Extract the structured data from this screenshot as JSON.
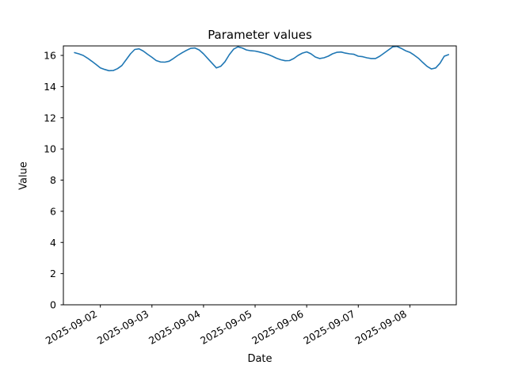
{
  "figure": {
    "background": "#ffffff",
    "text_color": "#000000"
  },
  "chart_data": {
    "type": "line",
    "title": "Parameter values",
    "xlabel": "Date",
    "ylabel": "Value",
    "grid": false,
    "legend": null,
    "line_color": "#1f77b4",
    "spine_color": "#000000",
    "y_ticks": [
      0,
      2,
      4,
      6,
      8,
      10,
      12,
      14,
      16
    ],
    "ylim": [
      0,
      16.61
    ],
    "xlim": [
      "2025-09-01 06:48",
      "2025-09-08 21:36"
    ],
    "x_tick_labels": [
      "2025-09-02",
      "2025-09-03",
      "2025-09-04",
      "2025-09-05",
      "2025-09-06",
      "2025-09-07",
      "2025-09-08"
    ],
    "x_tick_rotation_deg": 30,
    "series": [
      {
        "name": "parameter-values",
        "color": "#1f77b4",
        "points": [
          [
            "2025-09-01 12:00",
            16.18
          ],
          [
            "2025-09-01 14:00",
            16.1
          ],
          [
            "2025-09-01 16:00",
            16.0
          ],
          [
            "2025-09-01 18:00",
            15.83
          ],
          [
            "2025-09-01 20:00",
            15.63
          ],
          [
            "2025-09-01 22:00",
            15.42
          ],
          [
            "2025-09-02 00:00",
            15.2
          ],
          [
            "2025-09-02 02:00",
            15.1
          ],
          [
            "2025-09-02 04:00",
            15.02
          ],
          [
            "2025-09-02 06:00",
            15.03
          ],
          [
            "2025-09-02 08:00",
            15.15
          ],
          [
            "2025-09-02 10:00",
            15.35
          ],
          [
            "2025-09-02 12:00",
            15.72
          ],
          [
            "2025-09-02 14:00",
            16.1
          ],
          [
            "2025-09-02 16:00",
            16.38
          ],
          [
            "2025-09-02 18:00",
            16.42
          ],
          [
            "2025-09-02 20:00",
            16.28
          ],
          [
            "2025-09-02 22:00",
            16.07
          ],
          [
            "2025-09-03 00:00",
            15.88
          ],
          [
            "2025-09-03 02:00",
            15.67
          ],
          [
            "2025-09-03 04:00",
            15.58
          ],
          [
            "2025-09-03 06:00",
            15.57
          ],
          [
            "2025-09-03 08:00",
            15.63
          ],
          [
            "2025-09-03 10:00",
            15.8
          ],
          [
            "2025-09-03 12:00",
            16.0
          ],
          [
            "2025-09-03 14:00",
            16.17
          ],
          [
            "2025-09-03 16:00",
            16.32
          ],
          [
            "2025-09-03 18:00",
            16.45
          ],
          [
            "2025-09-03 20:00",
            16.48
          ],
          [
            "2025-09-03 22:00",
            16.35
          ],
          [
            "2025-09-04 00:00",
            16.1
          ],
          [
            "2025-09-04 02:00",
            15.8
          ],
          [
            "2025-09-04 04:00",
            15.5
          ],
          [
            "2025-09-04 06:00",
            15.2
          ],
          [
            "2025-09-04 08:00",
            15.3
          ],
          [
            "2025-09-04 10:00",
            15.6
          ],
          [
            "2025-09-04 12:00",
            16.05
          ],
          [
            "2025-09-04 14:00",
            16.4
          ],
          [
            "2025-09-04 16:00",
            16.55
          ],
          [
            "2025-09-04 18:00",
            16.48
          ],
          [
            "2025-09-04 20:00",
            16.35
          ],
          [
            "2025-09-04 22:00",
            16.3
          ],
          [
            "2025-09-05 00:00",
            16.28
          ],
          [
            "2025-09-05 02:00",
            16.22
          ],
          [
            "2025-09-05 04:00",
            16.15
          ],
          [
            "2025-09-05 06:00",
            16.06
          ],
          [
            "2025-09-05 08:00",
            15.95
          ],
          [
            "2025-09-05 10:00",
            15.82
          ],
          [
            "2025-09-05 12:00",
            15.72
          ],
          [
            "2025-09-05 14:00",
            15.66
          ],
          [
            "2025-09-05 16:00",
            15.67
          ],
          [
            "2025-09-05 18:00",
            15.8
          ],
          [
            "2025-09-05 20:00",
            16.0
          ],
          [
            "2025-09-05 22:00",
            16.15
          ],
          [
            "2025-09-06 00:00",
            16.23
          ],
          [
            "2025-09-06 02:00",
            16.1
          ],
          [
            "2025-09-06 04:00",
            15.9
          ],
          [
            "2025-09-06 06:00",
            15.8
          ],
          [
            "2025-09-06 08:00",
            15.85
          ],
          [
            "2025-09-06 10:00",
            15.95
          ],
          [
            "2025-09-06 12:00",
            16.1
          ],
          [
            "2025-09-06 14:00",
            16.2
          ],
          [
            "2025-09-06 16:00",
            16.22
          ],
          [
            "2025-09-06 18:00",
            16.15
          ],
          [
            "2025-09-06 20:00",
            16.1
          ],
          [
            "2025-09-06 22:00",
            16.07
          ],
          [
            "2025-09-07 00:00",
            15.95
          ],
          [
            "2025-09-07 02:00",
            15.92
          ],
          [
            "2025-09-07 04:00",
            15.85
          ],
          [
            "2025-09-07 06:00",
            15.8
          ],
          [
            "2025-09-07 08:00",
            15.8
          ],
          [
            "2025-09-07 10:00",
            15.95
          ],
          [
            "2025-09-07 12:00",
            16.15
          ],
          [
            "2025-09-07 14:00",
            16.35
          ],
          [
            "2025-09-07 16:00",
            16.55
          ],
          [
            "2025-09-07 18:00",
            16.58
          ],
          [
            "2025-09-07 20:00",
            16.45
          ],
          [
            "2025-09-07 22:00",
            16.3
          ],
          [
            "2025-09-08 00:00",
            16.2
          ],
          [
            "2025-09-08 02:00",
            16.02
          ],
          [
            "2025-09-08 04:00",
            15.82
          ],
          [
            "2025-09-08 06:00",
            15.55
          ],
          [
            "2025-09-08 08:00",
            15.3
          ],
          [
            "2025-09-08 10:00",
            15.13
          ],
          [
            "2025-09-08 12:00",
            15.2
          ],
          [
            "2025-09-08 14:00",
            15.5
          ],
          [
            "2025-09-08 16:00",
            15.95
          ],
          [
            "2025-09-08 18:00",
            16.05
          ]
        ]
      }
    ]
  }
}
